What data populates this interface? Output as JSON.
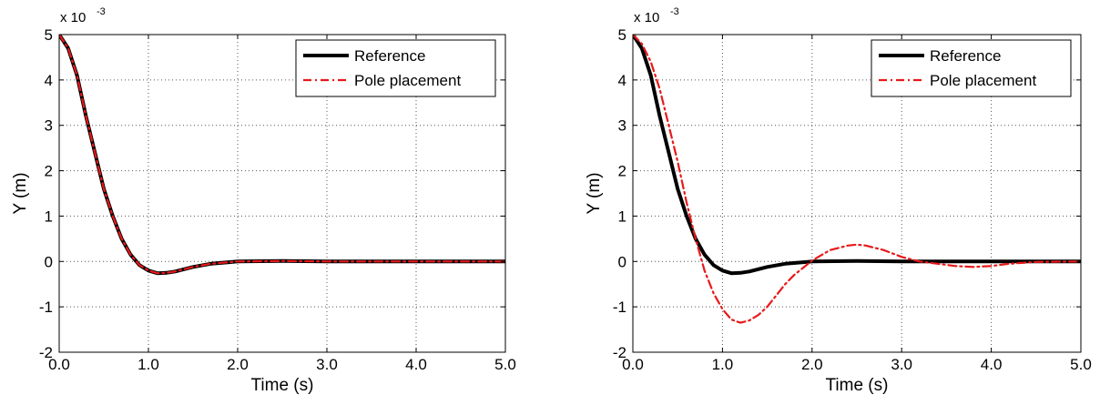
{
  "chart_data": [
    {
      "type": "line",
      "xlabel": "Time (s)",
      "ylabel": "Y (m)",
      "xlim": [
        0,
        5
      ],
      "ylim": [
        -2,
        5
      ],
      "y_multiplier_label": "x 10",
      "y_multiplier_exponent": "-3",
      "xticks": [
        "0.0",
        "1.0",
        "2.0",
        "3.0",
        "4.0",
        "5.0"
      ],
      "yticks": [
        "-2",
        "-1",
        "0",
        "1",
        "2",
        "3",
        "4",
        "5"
      ],
      "grid": true,
      "legend_position": "top-right",
      "series": [
        {
          "name": "Reference",
          "color": "#000000",
          "style": "solid",
          "x": [
            0,
            0.1,
            0.2,
            0.3,
            0.4,
            0.5,
            0.6,
            0.7,
            0.8,
            0.9,
            1.0,
            1.1,
            1.2,
            1.3,
            1.5,
            1.7,
            2.0,
            2.5,
            3.0,
            4.0,
            5.0
          ],
          "y": [
            5,
            4.7,
            4.1,
            3.2,
            2.4,
            1.6,
            1.0,
            0.5,
            0.15,
            -0.08,
            -0.2,
            -0.26,
            -0.25,
            -0.22,
            -0.12,
            -0.05,
            0.0,
            0.01,
            0,
            0,
            0
          ]
        },
        {
          "name": "Pole placement",
          "color": "#e8191a",
          "style": "dashdot",
          "x": [
            0,
            0.1,
            0.2,
            0.3,
            0.4,
            0.5,
            0.6,
            0.7,
            0.8,
            0.9,
            1.0,
            1.1,
            1.2,
            1.3,
            1.5,
            1.7,
            2.0,
            2.5,
            3.0,
            4.0,
            5.0
          ],
          "y": [
            5,
            4.7,
            4.1,
            3.2,
            2.4,
            1.6,
            1.0,
            0.5,
            0.15,
            -0.08,
            -0.2,
            -0.26,
            -0.25,
            -0.22,
            -0.12,
            -0.05,
            0.0,
            0.01,
            0,
            0,
            0
          ]
        }
      ]
    },
    {
      "type": "line",
      "xlabel": "Time (s)",
      "ylabel": "Y (m)",
      "xlim": [
        0,
        5
      ],
      "ylim": [
        -2,
        5
      ],
      "y_multiplier_label": "x 10",
      "y_multiplier_exponent": "-3",
      "xticks": [
        "0.0",
        "1.0",
        "2.0",
        "3.0",
        "4.0",
        "5.0"
      ],
      "yticks": [
        "-2",
        "-1",
        "0",
        "1",
        "2",
        "3",
        "4",
        "5"
      ],
      "grid": true,
      "legend_position": "top-right",
      "series": [
        {
          "name": "Reference",
          "color": "#000000",
          "style": "solid",
          "x": [
            0,
            0.1,
            0.2,
            0.3,
            0.4,
            0.5,
            0.6,
            0.7,
            0.8,
            0.9,
            1.0,
            1.1,
            1.2,
            1.3,
            1.5,
            1.7,
            2.0,
            2.5,
            3.0,
            4.0,
            5.0
          ],
          "y": [
            5,
            4.7,
            4.1,
            3.2,
            2.4,
            1.6,
            1.0,
            0.5,
            0.15,
            -0.08,
            -0.2,
            -0.26,
            -0.25,
            -0.22,
            -0.12,
            -0.05,
            0.0,
            0.01,
            0,
            0,
            0
          ]
        },
        {
          "name": "Pole placement",
          "color": "#e8191a",
          "style": "dashdot",
          "x": [
            0,
            0.1,
            0.2,
            0.3,
            0.4,
            0.5,
            0.6,
            0.7,
            0.8,
            0.9,
            1.0,
            1.1,
            1.2,
            1.3,
            1.4,
            1.5,
            1.6,
            1.7,
            1.8,
            2.0,
            2.2,
            2.4,
            2.5,
            2.6,
            2.8,
            3.0,
            3.2,
            3.4,
            3.6,
            3.8,
            4.0,
            4.2,
            4.5,
            5.0
          ],
          "y": [
            5,
            4.8,
            4.4,
            3.8,
            3.0,
            2.2,
            1.3,
            0.5,
            -0.2,
            -0.7,
            -1.05,
            -1.28,
            -1.35,
            -1.3,
            -1.18,
            -1.0,
            -0.75,
            -0.5,
            -0.3,
            0.02,
            0.25,
            0.35,
            0.37,
            0.35,
            0.25,
            0.1,
            0.0,
            -0.05,
            -0.1,
            -0.12,
            -0.1,
            -0.05,
            -0.01,
            0
          ]
        }
      ]
    }
  ]
}
